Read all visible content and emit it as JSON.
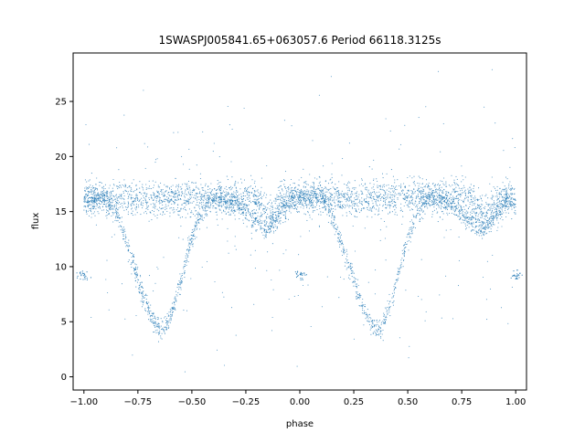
{
  "chart_data": {
    "type": "scatter",
    "title": "1SWASPJ005841.65+063057.6 Period 66118.3125s",
    "xlabel": "phase",
    "ylabel": "flux",
    "xlim": [
      -1.05,
      1.05
    ],
    "ylim": [
      -1.2,
      29.4
    ],
    "xticks": [
      -1.0,
      -0.75,
      -0.5,
      -0.25,
      0.0,
      0.25,
      0.5,
      0.75,
      1.0
    ],
    "xtick_labels": [
      "−1.00",
      "−0.75",
      "−0.50",
      "−0.25",
      "0.00",
      "0.25",
      "0.50",
      "0.75",
      "1.00"
    ],
    "yticks": [
      0,
      5,
      10,
      15,
      20,
      25
    ],
    "ytick_labels": [
      "0",
      "5",
      "10",
      "15",
      "20",
      "25"
    ],
    "grid": false,
    "legend": "none",
    "marker_color": "#1f77b4",
    "series": [
      {
        "description_points": "phase-folded light curve (sampled); pattern repeats with period 1 in phase",
        "x": [
          -1.0,
          -0.95,
          -0.9,
          -0.85,
          -0.8,
          -0.75,
          -0.72,
          -0.69,
          -0.66,
          -0.64,
          -0.62,
          -0.6,
          -0.57,
          -0.54,
          -0.5,
          -0.46,
          -0.42,
          -0.38,
          -0.35,
          -0.3,
          -0.25,
          -0.2,
          -0.15,
          -0.12,
          -0.08,
          -0.04,
          0.0,
          0.05,
          0.1,
          0.15,
          0.2,
          0.25,
          0.28,
          0.31,
          0.34,
          0.36,
          0.38,
          0.4,
          0.43,
          0.46,
          0.5,
          0.54,
          0.58,
          0.62,
          0.65,
          0.7,
          0.75,
          0.8,
          0.85,
          0.88,
          0.92,
          0.96,
          1.0
        ],
        "y": [
          15.8,
          16.2,
          16.3,
          15.0,
          12.0,
          9.0,
          7.0,
          5.5,
          4.6,
          4.3,
          4.6,
          5.5,
          7.3,
          9.5,
          12.5,
          14.8,
          15.9,
          16.4,
          16.2,
          15.6,
          14.8,
          14.0,
          13.4,
          14.0,
          15.2,
          16.0,
          16.2,
          16.3,
          16.5,
          14.5,
          11.5,
          9.0,
          7.0,
          5.5,
          4.6,
          4.3,
          4.6,
          5.5,
          7.3,
          9.5,
          12.5,
          14.8,
          15.9,
          16.4,
          16.2,
          15.6,
          14.8,
          14.0,
          13.4,
          14.0,
          15.2,
          16.0,
          15.8
        ]
      }
    ]
  }
}
